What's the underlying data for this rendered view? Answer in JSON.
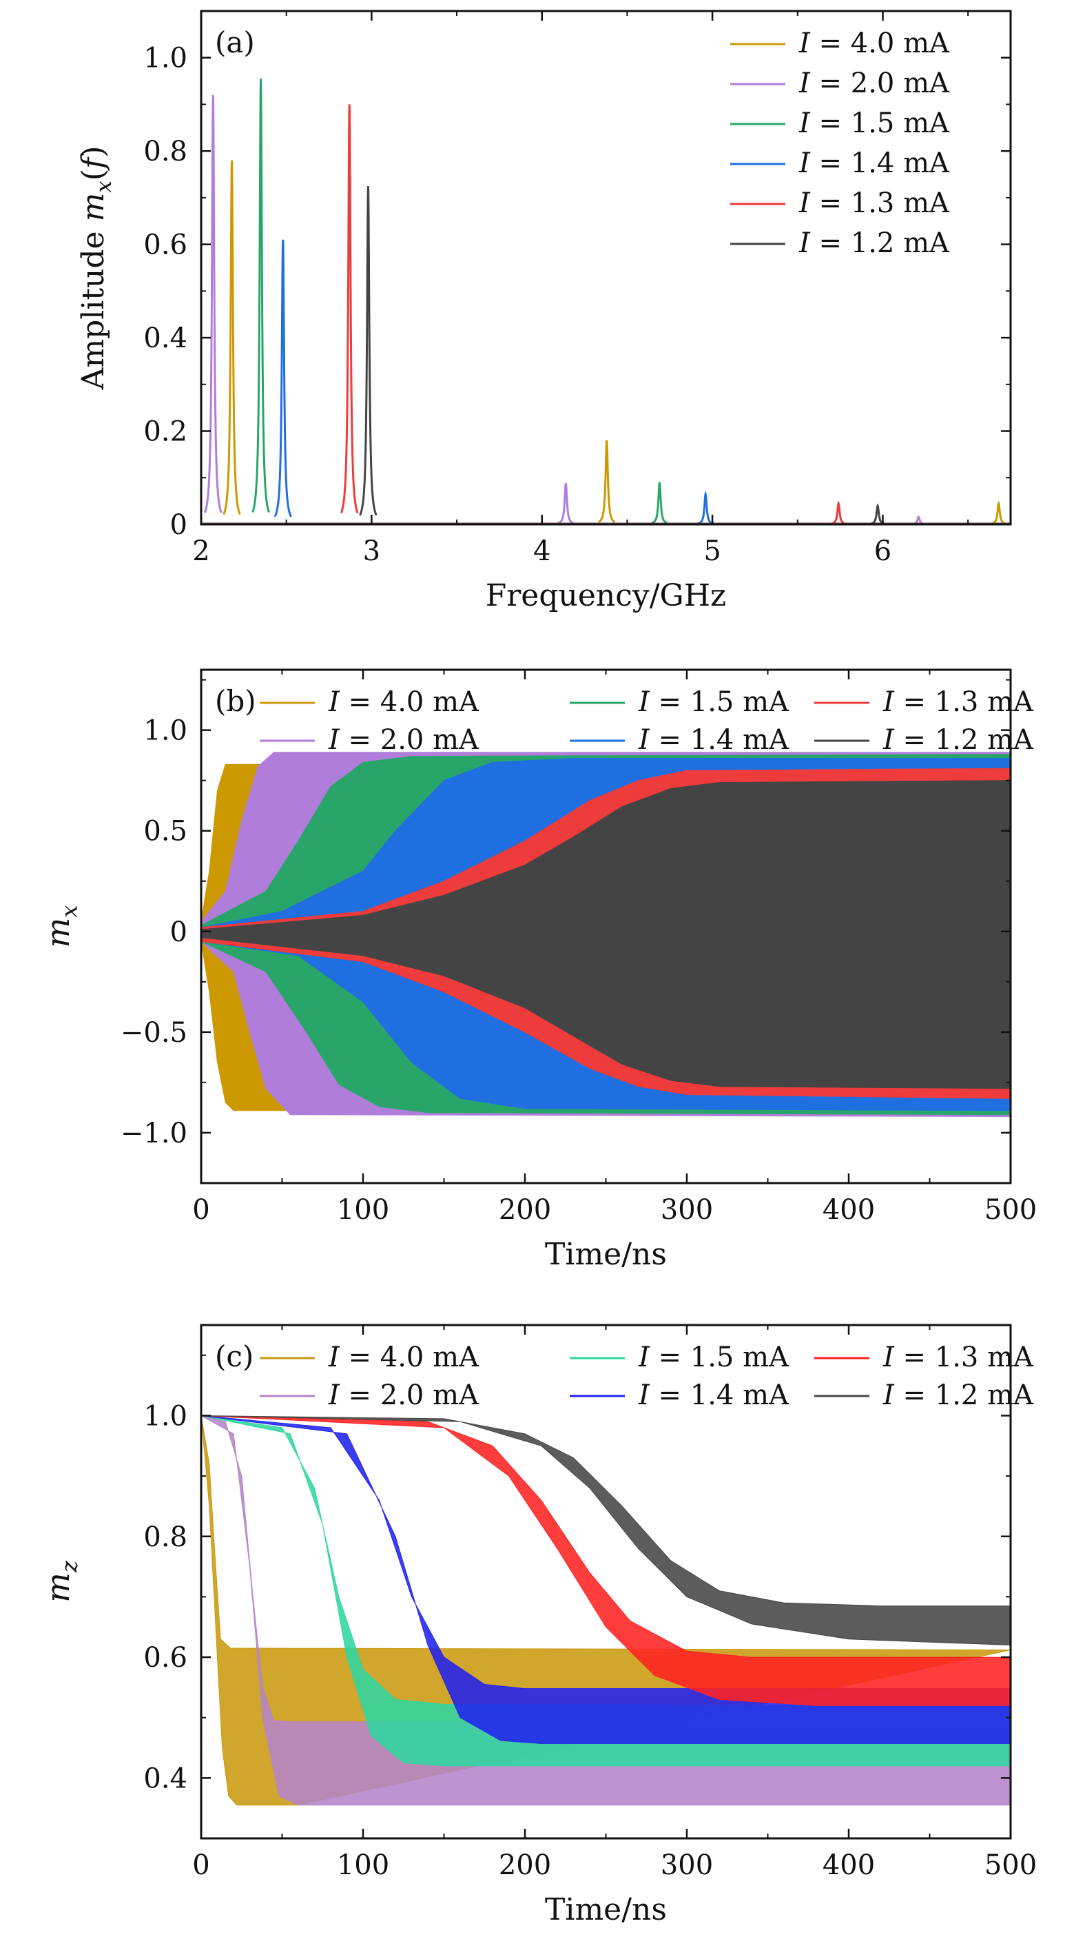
{
  "colors": {
    "4.0": "#cc9900",
    "2.0": "#b07ddb",
    "1.5": "#2aa56a",
    "1.4": "#1f6fe0",
    "1.3": "#ee3b3b",
    "1.2": "#444444"
  },
  "colors_c": {
    "4.0": "#c99a10",
    "2.0": "#b585c9",
    "1.5": "#2fd6a0",
    "1.4": "#2222ee",
    "1.3": "#ff2222",
    "1.2": "#454545"
  },
  "legend_prefix": "I",
  "legend_unit": "mA",
  "chart_data": [
    {
      "type": "line",
      "panel_label": "(a)",
      "xlabel": "Frequency/GHz",
      "ylabel_text": "Amplitude",
      "ylabel_math": "mx(f)",
      "xlim": [
        2,
        6.75
      ],
      "ylim": [
        0,
        1.1
      ],
      "xticks": [
        "2",
        "3",
        "4",
        "5",
        "6"
      ],
      "yticks": [
        "0",
        "0.2",
        "0.4",
        "0.6",
        "0.8",
        "1.0"
      ],
      "legend_position": "top-right",
      "series": [
        {
          "name": "4.0",
          "label": "= 4.0 mA",
          "peaks": [
            [
              2.18,
              0.78
            ],
            [
              4.38,
              0.18
            ],
            [
              6.68,
              0.045
            ]
          ]
        },
        {
          "name": "2.0",
          "label": "= 2.0 mA",
          "peaks": [
            [
              2.07,
              0.92
            ],
            [
              4.14,
              0.088
            ],
            [
              6.21,
              0.016
            ]
          ]
        },
        {
          "name": "1.5",
          "label": "= 1.5 mA",
          "peaks": [
            [
              2.35,
              0.955
            ],
            [
              4.69,
              0.09
            ]
          ]
        },
        {
          "name": "1.4",
          "label": "= 1.4 mA",
          "peaks": [
            [
              2.48,
              0.61
            ],
            [
              4.96,
              0.065
            ]
          ]
        },
        {
          "name": "1.3",
          "label": "= 1.3 mA",
          "peaks": [
            [
              2.87,
              0.9
            ],
            [
              5.74,
              0.045
            ]
          ]
        },
        {
          "name": "1.2",
          "label": "= 1.2 mA",
          "peaks": [
            [
              2.98,
              0.725
            ],
            [
              5.97,
              0.04
            ]
          ]
        }
      ]
    },
    {
      "type": "area",
      "panel_label": "(b)",
      "xlabel": "Time/ns",
      "ylabel_math": "mx",
      "xlim": [
        0,
        500
      ],
      "ylim": [
        -1.25,
        1.3
      ],
      "xticks": [
        "0",
        "100",
        "200",
        "300",
        "400",
        "500"
      ],
      "yticks": [
        "−1.0",
        "−0.5",
        "0",
        "0.5",
        "1.0"
      ],
      "legend_position": "top",
      "series": [
        {
          "name": "4.0",
          "label": "= 4.0 mA",
          "upper": [
            [
              0,
              0.05
            ],
            [
              5,
              0.3
            ],
            [
              10,
              0.7
            ],
            [
              15,
              0.83
            ],
            [
              500,
              0.84
            ]
          ],
          "lower": [
            [
              0,
              -0.05
            ],
            [
              5,
              -0.3
            ],
            [
              10,
              -0.65
            ],
            [
              15,
              -0.85
            ],
            [
              20,
              -0.89
            ],
            [
              500,
              -0.89
            ]
          ]
        },
        {
          "name": "2.0",
          "label": "= 2.0 mA",
          "upper": [
            [
              0,
              0.05
            ],
            [
              15,
              0.2
            ],
            [
              25,
              0.55
            ],
            [
              35,
              0.82
            ],
            [
              45,
              0.89
            ],
            [
              500,
              0.89
            ]
          ],
          "lower": [
            [
              0,
              -0.05
            ],
            [
              20,
              -0.2
            ],
            [
              30,
              -0.5
            ],
            [
              40,
              -0.78
            ],
            [
              55,
              -0.91
            ],
            [
              500,
              -0.92
            ]
          ]
        },
        {
          "name": "1.5",
          "label": "= 1.5 mA",
          "upper": [
            [
              0,
              0.03
            ],
            [
              40,
              0.2
            ],
            [
              60,
              0.45
            ],
            [
              80,
              0.72
            ],
            [
              100,
              0.84
            ],
            [
              130,
              0.87
            ],
            [
              500,
              0.88
            ]
          ],
          "lower": [
            [
              0,
              -0.05
            ],
            [
              40,
              -0.2
            ],
            [
              65,
              -0.5
            ],
            [
              85,
              -0.76
            ],
            [
              110,
              -0.87
            ],
            [
              140,
              -0.9
            ],
            [
              500,
              -0.91
            ]
          ]
        },
        {
          "name": "1.4",
          "label": "= 1.4 mA",
          "upper": [
            [
              0,
              0.02
            ],
            [
              50,
              0.1
            ],
            [
              100,
              0.3
            ],
            [
              120,
              0.5
            ],
            [
              150,
              0.75
            ],
            [
              180,
              0.84
            ],
            [
              230,
              0.86
            ],
            [
              500,
              0.86
            ]
          ],
          "lower": [
            [
              0,
              -0.05
            ],
            [
              60,
              -0.12
            ],
            [
              100,
              -0.35
            ],
            [
              130,
              -0.65
            ],
            [
              160,
              -0.83
            ],
            [
              200,
              -0.88
            ],
            [
              500,
              -0.89
            ]
          ]
        },
        {
          "name": "1.3",
          "label": "= 1.3 mA",
          "upper": [
            [
              0,
              0.02
            ],
            [
              100,
              0.1
            ],
            [
              150,
              0.25
            ],
            [
              200,
              0.45
            ],
            [
              240,
              0.65
            ],
            [
              270,
              0.75
            ],
            [
              300,
              0.8
            ],
            [
              500,
              0.81
            ]
          ],
          "lower": [
            [
              0,
              -0.05
            ],
            [
              100,
              -0.15
            ],
            [
              150,
              -0.3
            ],
            [
              200,
              -0.5
            ],
            [
              240,
              -0.68
            ],
            [
              270,
              -0.77
            ],
            [
              300,
              -0.81
            ],
            [
              500,
              -0.83
            ]
          ]
        },
        {
          "name": "1.2",
          "label": "= 1.2 mA",
          "upper": [
            [
              0,
              0.01
            ],
            [
              100,
              0.08
            ],
            [
              150,
              0.18
            ],
            [
              200,
              0.33
            ],
            [
              230,
              0.47
            ],
            [
              260,
              0.62
            ],
            [
              290,
              0.71
            ],
            [
              320,
              0.74
            ],
            [
              500,
              0.75
            ]
          ],
          "lower": [
            [
              0,
              -0.03
            ],
            [
              100,
              -0.12
            ],
            [
              150,
              -0.22
            ],
            [
              200,
              -0.38
            ],
            [
              230,
              -0.52
            ],
            [
              260,
              -0.66
            ],
            [
              290,
              -0.74
            ],
            [
              320,
              -0.77
            ],
            [
              500,
              -0.78
            ]
          ]
        }
      ]
    },
    {
      "type": "area",
      "panel_label": "(c)",
      "xlabel": "Time/ns",
      "ylabel_math": "mz",
      "xlim": [
        0,
        500
      ],
      "ylim": [
        0.3,
        1.15
      ],
      "xticks": [
        "0",
        "100",
        "200",
        "300",
        "400",
        "500"
      ],
      "yticks": [
        "0.4",
        "0.6",
        "0.8",
        "1.0"
      ],
      "legend_position": "top",
      "series": [
        {
          "name": "4.0",
          "label": "= 4.0 mA",
          "upper": [
            [
              0,
              1.0
            ],
            [
              5,
              0.92
            ],
            [
              9,
              0.75
            ],
            [
              12,
              0.63
            ],
            [
              18,
              0.615
            ],
            [
              500,
              0.612
            ]
          ],
          "lower": [
            [
              0,
              1.0
            ],
            [
              5,
              0.85
            ],
            [
              10,
              0.6
            ],
            [
              13,
              0.45
            ],
            [
              17,
              0.37
            ],
            [
              22,
              0.355
            ],
            [
              60,
              0.355
            ]
          ]
        },
        {
          "name": "2.0",
          "label": "= 2.0 mA",
          "upper": [
            [
              0,
              1.0
            ],
            [
              15,
              0.99
            ],
            [
              25,
              0.9
            ],
            [
              32,
              0.7
            ],
            [
              38,
              0.55
            ],
            [
              45,
              0.495
            ],
            [
              55,
              0.493
            ],
            [
              500,
              0.493
            ]
          ],
          "lower": [
            [
              0,
              1.0
            ],
            [
              20,
              0.97
            ],
            [
              30,
              0.75
            ],
            [
              38,
              0.5
            ],
            [
              48,
              0.37
            ],
            [
              60,
              0.355
            ],
            [
              500,
              0.355
            ]
          ]
        },
        {
          "name": "1.5",
          "label": "= 1.5 mA",
          "upper": [
            [
              0,
              1.0
            ],
            [
              50,
              0.98
            ],
            [
              70,
              0.88
            ],
            [
              85,
              0.7
            ],
            [
              100,
              0.58
            ],
            [
              120,
              0.53
            ],
            [
              150,
              0.522
            ],
            [
              500,
              0.52
            ]
          ],
          "lower": [
            [
              0,
              1.0
            ],
            [
              55,
              0.97
            ],
            [
              75,
              0.82
            ],
            [
              90,
              0.6
            ],
            [
              105,
              0.47
            ],
            [
              125,
              0.425
            ],
            [
              150,
              0.42
            ],
            [
              500,
              0.42
            ]
          ]
        },
        {
          "name": "1.4",
          "label": "= 1.4 mA",
          "upper": [
            [
              0,
              1.0
            ],
            [
              80,
              0.98
            ],
            [
              110,
              0.86
            ],
            [
              130,
              0.7
            ],
            [
              150,
              0.6
            ],
            [
              175,
              0.555
            ],
            [
              200,
              0.548
            ],
            [
              500,
              0.548
            ]
          ],
          "lower": [
            [
              0,
              1.0
            ],
            [
              90,
              0.97
            ],
            [
              120,
              0.8
            ],
            [
              140,
              0.62
            ],
            [
              160,
              0.5
            ],
            [
              185,
              0.462
            ],
            [
              210,
              0.457
            ],
            [
              500,
              0.457
            ]
          ]
        },
        {
          "name": "1.3",
          "label": "= 1.3 mA",
          "upper": [
            [
              0,
              1.0
            ],
            [
              140,
              0.99
            ],
            [
              180,
              0.95
            ],
            [
              210,
              0.86
            ],
            [
              240,
              0.74
            ],
            [
              265,
              0.66
            ],
            [
              300,
              0.61
            ],
            [
              340,
              0.6
            ],
            [
              500,
              0.6
            ]
          ],
          "lower": [
            [
              0,
              1.0
            ],
            [
              150,
              0.98
            ],
            [
              190,
              0.9
            ],
            [
              220,
              0.78
            ],
            [
              250,
              0.65
            ],
            [
              280,
              0.57
            ],
            [
              320,
              0.53
            ],
            [
              380,
              0.52
            ],
            [
              500,
              0.52
            ]
          ]
        },
        {
          "name": "1.2",
          "label": "= 1.2 mA",
          "upper": [
            [
              0,
              1.0
            ],
            [
              150,
              0.995
            ],
            [
              200,
              0.97
            ],
            [
              230,
              0.93
            ],
            [
              260,
              0.85
            ],
            [
              290,
              0.76
            ],
            [
              320,
              0.71
            ],
            [
              360,
              0.69
            ],
            [
              420,
              0.685
            ],
            [
              500,
              0.685
            ]
          ],
          "lower": [
            [
              0,
              1.0
            ],
            [
              160,
              0.99
            ],
            [
              210,
              0.95
            ],
            [
              240,
              0.88
            ],
            [
              270,
              0.78
            ],
            [
              300,
              0.7
            ],
            [
              340,
              0.655
            ],
            [
              400,
              0.63
            ],
            [
              500,
              0.62
            ]
          ]
        }
      ]
    }
  ]
}
